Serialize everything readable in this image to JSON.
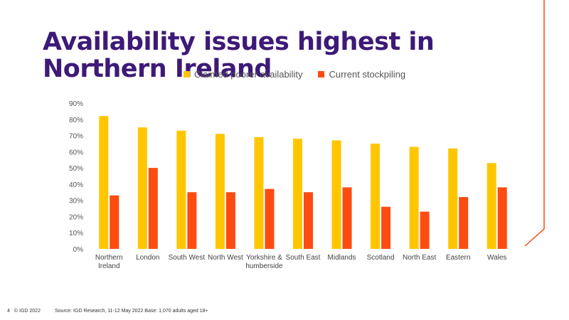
{
  "slide": {
    "title": "Availability issues highest in Northern Ireland",
    "page_number": "4",
    "copyright": "© IGD 2022",
    "source": "Source: IGD Research, 11-12 May 2022  Base: 1,070 adults aged 18+"
  },
  "colors": {
    "title": "#3d1a78",
    "series1": "#ffc600",
    "series2": "#fc4c12",
    "accent_line": "#fc4c12"
  },
  "chart_data": {
    "type": "bar",
    "categories": [
      "Northern Ireland",
      "London",
      "South West",
      "North West",
      "Yorkshire & humberside",
      "South East",
      "Midlands",
      "Scotland",
      "North East",
      "Eastern",
      "Wales"
    ],
    "category_lines": [
      [
        "Northern",
        "Ireland"
      ],
      [
        "London"
      ],
      [
        "South West"
      ],
      [
        "North West"
      ],
      [
        "Yorkshire &",
        "humberside"
      ],
      [
        "South East"
      ],
      [
        "Midlands"
      ],
      [
        "Scotland"
      ],
      [
        "North East"
      ],
      [
        "Eastern"
      ],
      [
        "Wales"
      ]
    ],
    "series": [
      {
        "name": "Claimed poorer availability",
        "values": [
          82,
          75,
          73,
          71,
          69,
          68,
          67,
          65,
          63,
          62,
          53
        ]
      },
      {
        "name": "Current stockpiling",
        "values": [
          33,
          50,
          35,
          35,
          37,
          35,
          38,
          26,
          23,
          32,
          38
        ]
      }
    ],
    "ylim": [
      0,
      90
    ],
    "yticks": [
      "0%",
      "10%",
      "20%",
      "30%",
      "40%",
      "50%",
      "60%",
      "70%",
      "80%",
      "90%"
    ],
    "legend": "top",
    "grid": false
  }
}
